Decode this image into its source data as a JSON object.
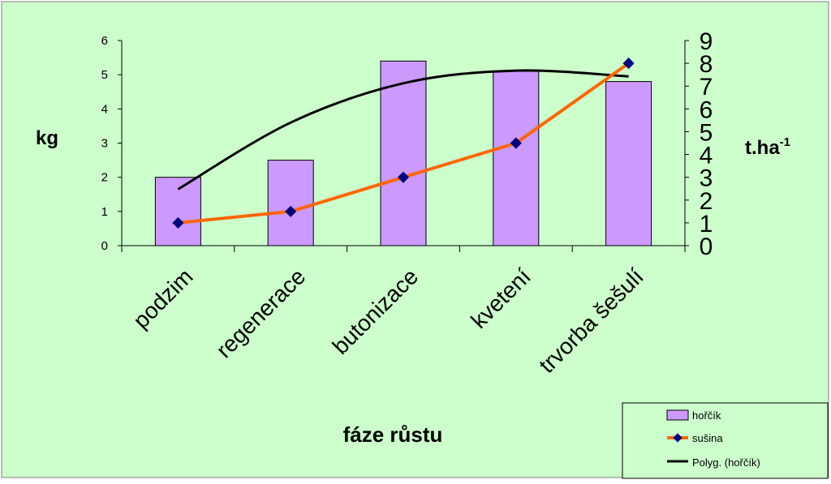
{
  "chart_data": {
    "type": "bar",
    "categories": [
      "podzim",
      "regenerace",
      "butonizace",
      "kvetení",
      "trvorba šešulí"
    ],
    "xlabel": "fáze růstu",
    "ylabel": "kg",
    "ylabel2_base": "t.ha",
    "ylabel2_exp": "-1",
    "ylim": [
      0,
      6
    ],
    "y_ticks": [
      "0",
      "1",
      "2",
      "3",
      "4",
      "5",
      "6"
    ],
    "y2lim": [
      0,
      9
    ],
    "y2_ticks": [
      "0",
      "1",
      "2",
      "3",
      "4",
      "5",
      "6",
      "7",
      "8",
      "9"
    ],
    "series": [
      {
        "name": "hořčík",
        "kind": "bar",
        "axis": "left",
        "values": [
          2.0,
          2.5,
          5.4,
          5.1,
          4.8
        ]
      },
      {
        "name": "sušina",
        "kind": "line",
        "axis": "right",
        "values": [
          1.0,
          1.5,
          3.0,
          4.5,
          8.0
        ]
      },
      {
        "name": "Polyg. (hořčík)",
        "kind": "trendline",
        "axis": "left",
        "values": [
          1.65,
          3.6,
          4.75,
          5.12,
          4.95
        ]
      }
    ],
    "grid": false,
    "legend_position": "bottom-right"
  },
  "colors": {
    "background": "#ccffcc",
    "bar_fill": "#cc99ff",
    "line": "#ff6600",
    "marker": "#000080",
    "trend": "#000000"
  }
}
